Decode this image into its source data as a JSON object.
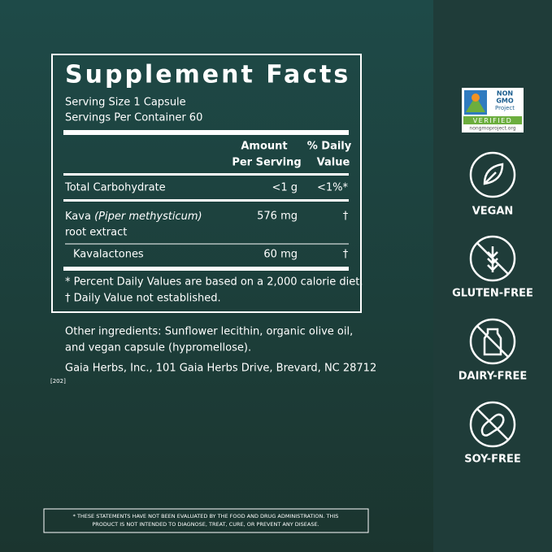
{
  "panel": {
    "title": "Supplement Facts",
    "serving_size": "Serving Size 1 Capsule",
    "servings_per_container": "Servings Per Container 60",
    "header": {
      "amount": [
        "Amount",
        "Per Serving"
      ],
      "daily_value": [
        "% Daily",
        "Value"
      ]
    },
    "rows": [
      {
        "name": "Total Carbohydrate",
        "amount": "<1 g",
        "daily_value": "<1%*"
      },
      {
        "name": "Kava",
        "latin": "(Piper methysticum)",
        "name_line2": "root extract",
        "amount": "576 mg",
        "daily_value": "†"
      },
      {
        "name": "Kavalactones",
        "amount": "60 mg",
        "daily_value": "†"
      }
    ],
    "footnotes": [
      "*  Percent Daily Values are based on a 2,000 calorie diet.",
      "† Daily Value not established."
    ]
  },
  "other_ingredients": [
    "Other ingredients: Sunflower lecithin, organic olive oil,",
    "and vegan capsule (hypromellose)."
  ],
  "address": "Gaia Herbs, Inc., 101 Gaia Herbs Drive, Brevard, NC 28712",
  "code": "[202]",
  "disclaimer": [
    "* THESE STATEMENTS HAVE NOT BEEN EVALUATED BY THE FOOD AND DRUG ADMINISTRATION. THIS",
    "PRODUCT IS NOT INTENDED TO DIAGNOSE, TREAT, CURE, OR PREVENT ANY DISEASE."
  ],
  "badge": {
    "lines": [
      "NON",
      "GMO",
      "Project"
    ],
    "verified": "VERIFIED",
    "url": "nongmoproject.org"
  },
  "icons": [
    "VEGAN",
    "GLUTEN-FREE",
    "DAIRY-FREE",
    "SOY-FREE"
  ]
}
